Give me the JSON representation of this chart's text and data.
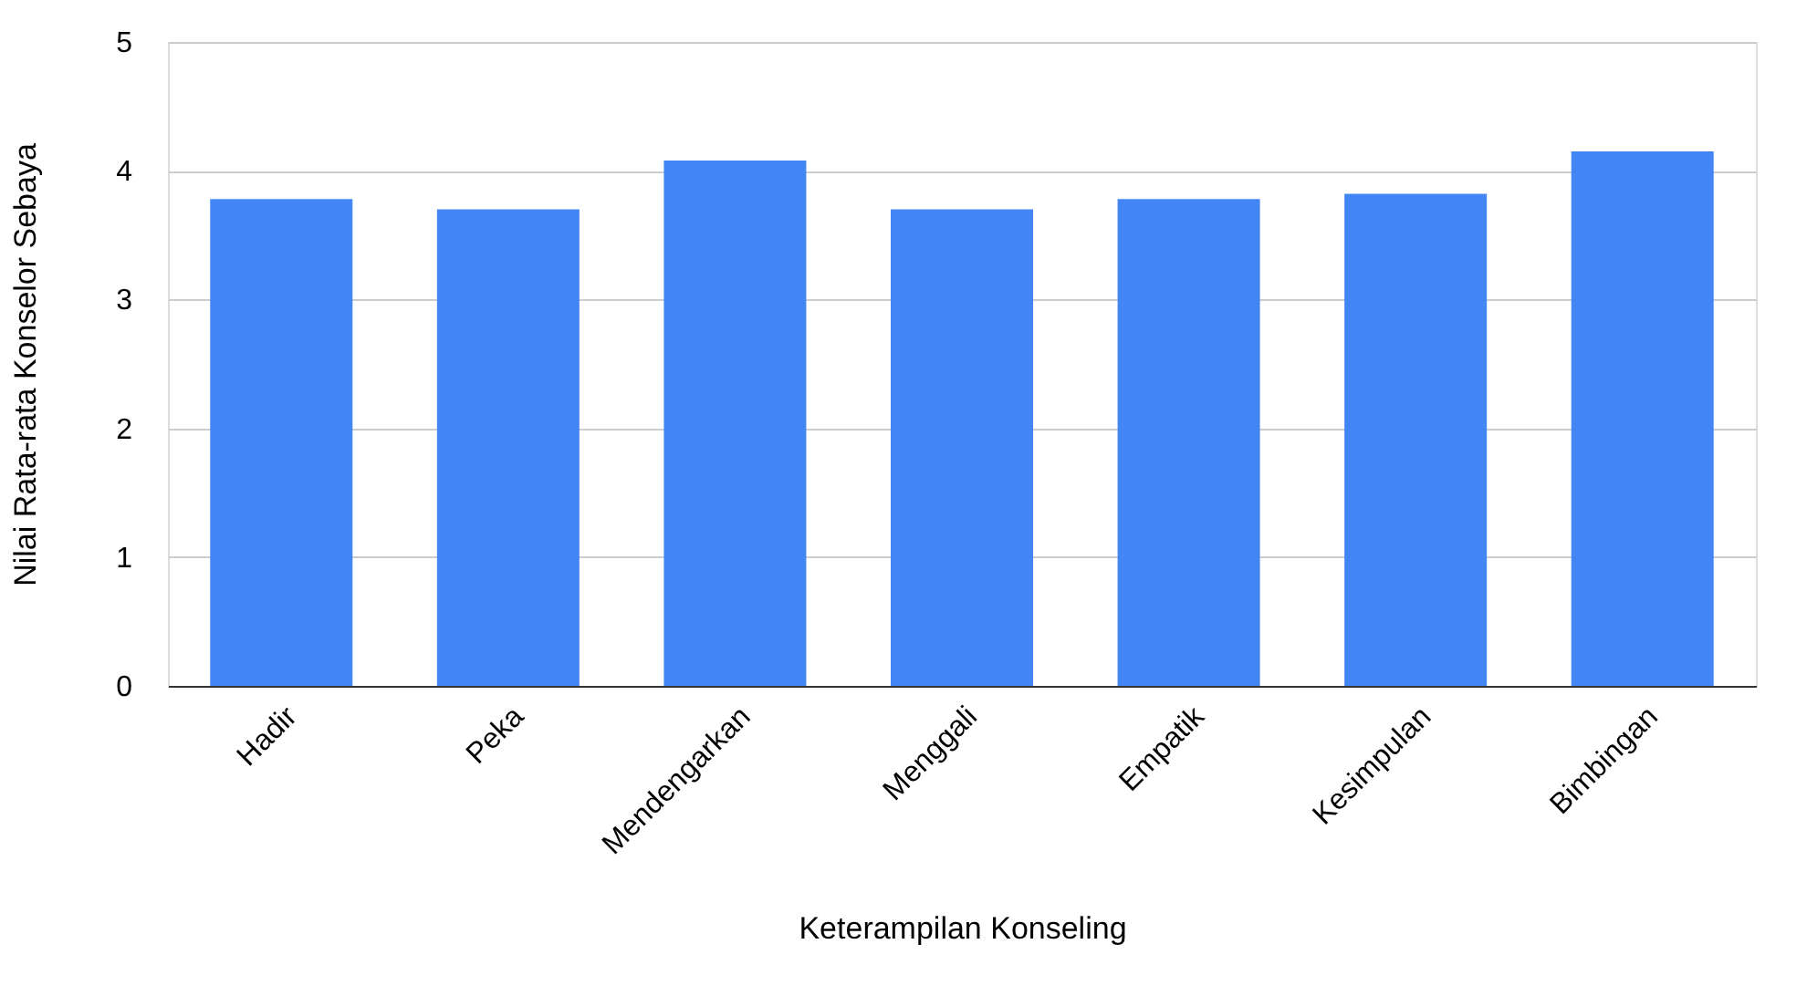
{
  "chart_data": {
    "type": "bar",
    "xlabel": "Keterampilan Konseling",
    "ylabel": "Nilai Rata-rata Konselor Sebaya",
    "categories": [
      "Hadir",
      "Peka",
      "Mendengarkan",
      "Menggali",
      "Empatik",
      "Kesimpulan",
      "Bimbingan"
    ],
    "values": [
      3.78,
      3.7,
      4.08,
      3.7,
      3.78,
      3.82,
      4.15
    ],
    "color": "#4285f4",
    "ylim": [
      0,
      5
    ],
    "yticks": [
      0,
      1,
      2,
      3,
      4,
      5
    ],
    "grid": "y"
  }
}
